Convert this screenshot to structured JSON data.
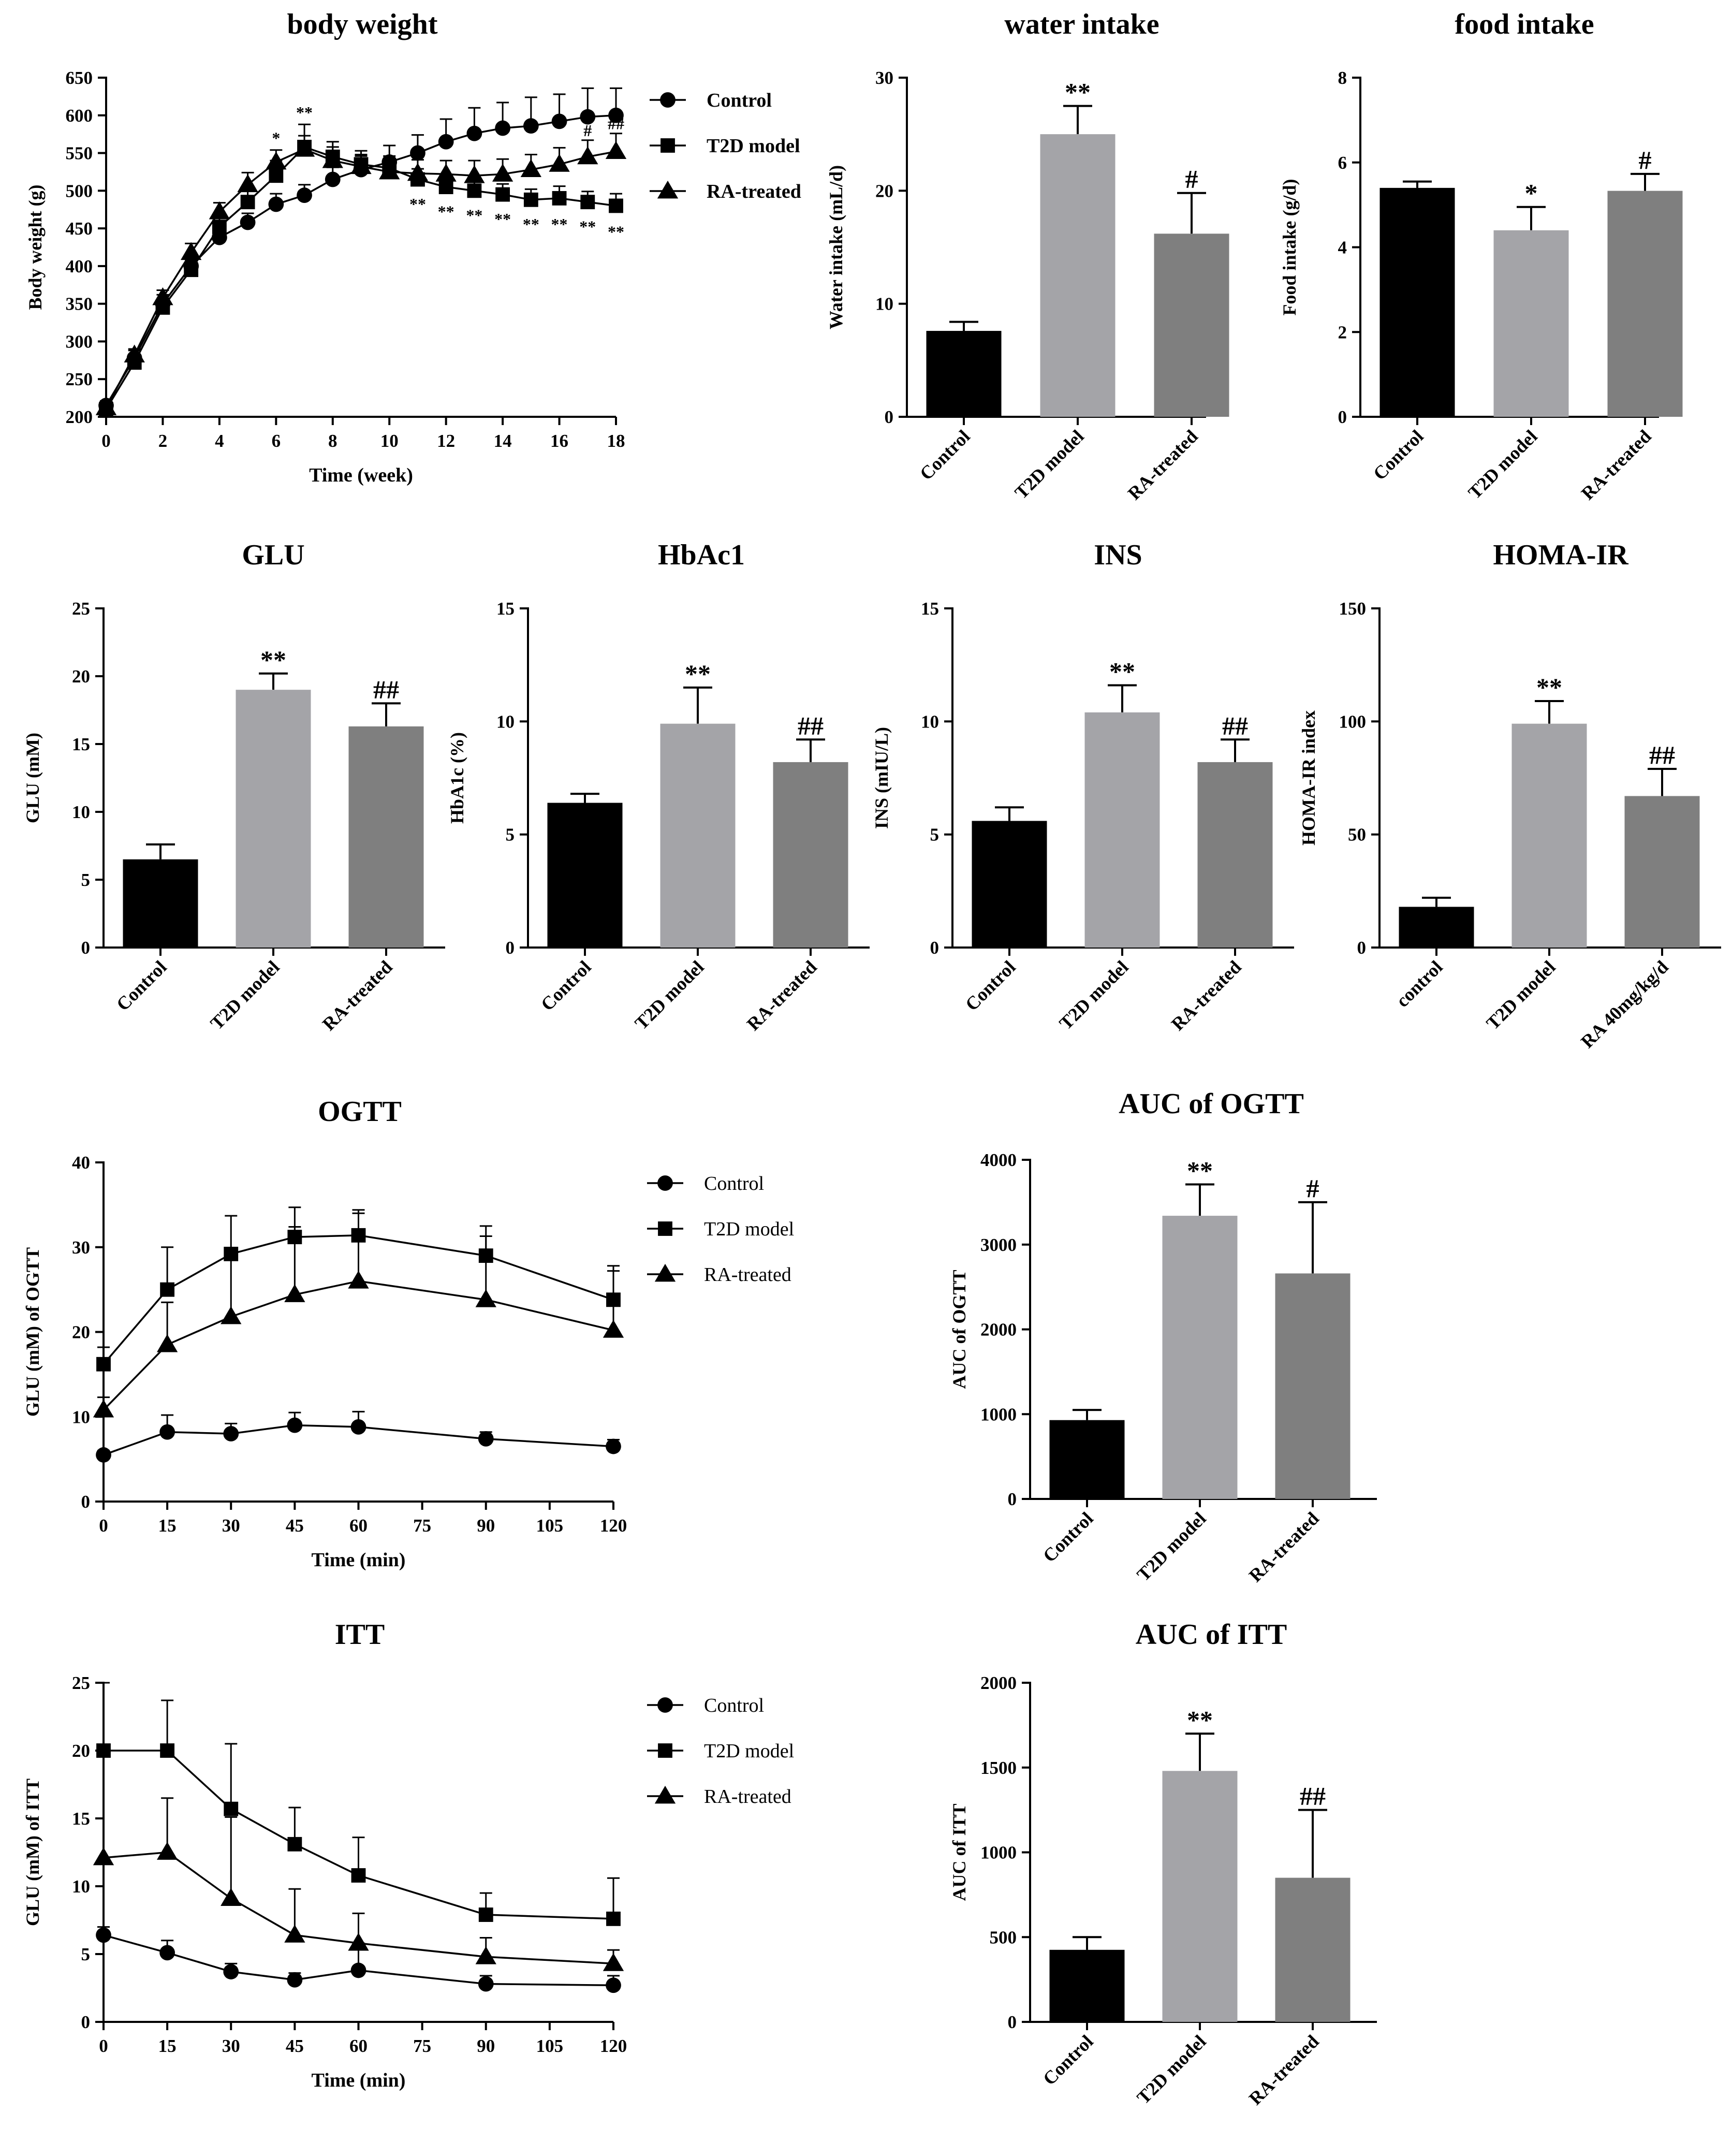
{
  "chart_data": [
    {
      "id": "bw",
      "type": "line",
      "title": "body weight",
      "xlabel": "Time (week)",
      "ylabel": "Body weight (g)",
      "xlim": [
        0,
        18
      ],
      "ylim": [
        200,
        650
      ],
      "xticks": [
        0,
        2,
        4,
        6,
        8,
        10,
        12,
        14,
        16,
        18
      ],
      "yticks": [
        200,
        250,
        300,
        350,
        400,
        450,
        500,
        550,
        600,
        650
      ],
      "legend_style": "bold",
      "series": [
        {
          "name": "Control",
          "marker": "circle",
          "x": [
            0,
            1,
            2,
            3,
            4,
            5,
            6,
            7,
            8,
            9,
            10,
            11,
            12,
            13,
            14,
            15,
            16,
            17,
            18
          ],
          "y": [
            215,
            278,
            350,
            400,
            438,
            458,
            482,
            494,
            515,
            528,
            538,
            550,
            565,
            576,
            583,
            586,
            592,
            598,
            600
          ],
          "err": [
            6,
            10,
            12,
            12,
            10,
            12,
            14,
            14,
            16,
            18,
            22,
            24,
            30,
            34,
            34,
            38,
            36,
            38,
            36
          ]
        },
        {
          "name": "T2D model",
          "marker": "square",
          "x": [
            0,
            1,
            2,
            3,
            4,
            5,
            6,
            7,
            8,
            9,
            10,
            11,
            12,
            13,
            14,
            15,
            16,
            17,
            18
          ],
          "y": [
            210,
            272,
            345,
            395,
            452,
            485,
            520,
            558,
            545,
            535,
            530,
            515,
            505,
            500,
            495,
            488,
            490,
            485,
            480
          ],
          "err": [
            6,
            8,
            10,
            12,
            12,
            16,
            20,
            30,
            20,
            18,
            16,
            14,
            14,
            14,
            14,
            14,
            16,
            14,
            16
          ]
        },
        {
          "name": "RA-treated",
          "marker": "triangle",
          "x": [
            0,
            1,
            2,
            3,
            4,
            5,
            6,
            7,
            8,
            9,
            10,
            11,
            12,
            13,
            14,
            15,
            16,
            17,
            18
          ],
          "y": [
            212,
            282,
            358,
            418,
            472,
            508,
            538,
            555,
            540,
            532,
            525,
            523,
            522,
            520,
            522,
            528,
            535,
            545,
            552
          ],
          "err": [
            6,
            8,
            10,
            12,
            12,
            16,
            16,
            18,
            18,
            16,
            16,
            18,
            18,
            20,
            20,
            20,
            22,
            22,
            24
          ]
        }
      ],
      "annotations": [
        {
          "x": 6,
          "text": "*"
        },
        {
          "x": 7,
          "text": "**"
        },
        {
          "x": 11,
          "text": "**"
        },
        {
          "x": 12,
          "text": "**"
        },
        {
          "x": 13,
          "text": "**"
        },
        {
          "x": 14,
          "text": "**"
        },
        {
          "x": 15,
          "text": "**"
        },
        {
          "x": 16,
          "text": "**"
        },
        {
          "x": 17,
          "text": "**"
        },
        {
          "x": 18,
          "text": "**"
        },
        {
          "x": 17,
          "text": "#"
        },
        {
          "x": 18,
          "text": "##"
        }
      ]
    },
    {
      "id": "water",
      "type": "bar",
      "title": "water intake",
      "ylabel": "Water intake (mL/d)",
      "ylim": [
        0,
        30
      ],
      "yticks": [
        0,
        10,
        20,
        30
      ],
      "categories": [
        "Control",
        "T2D model",
        "RA-treated"
      ],
      "values": [
        7.6,
        25.0,
        16.2
      ],
      "err": [
        0.8,
        2.5,
        3.6
      ],
      "annotations": [
        "",
        "**",
        "#"
      ]
    },
    {
      "id": "food",
      "type": "bar",
      "title": "food intake",
      "ylabel": "Food intake (g/d)",
      "ylim": [
        0,
        8
      ],
      "yticks": [
        0,
        2,
        4,
        6,
        8
      ],
      "categories": [
        "Control",
        "T2D model",
        "RA-treated"
      ],
      "values": [
        5.4,
        4.4,
        5.33
      ],
      "err": [
        0.15,
        0.55,
        0.4
      ],
      "annotations": [
        "",
        "*",
        "#"
      ]
    },
    {
      "id": "glu",
      "type": "bar",
      "title": "GLU",
      "ylabel": "GLU (mM)",
      "ylim": [
        0,
        25
      ],
      "yticks": [
        0,
        5,
        10,
        15,
        20,
        25
      ],
      "categories": [
        "Control",
        "T2D model",
        "RA-treated"
      ],
      "values": [
        6.5,
        19.0,
        16.3
      ],
      "err": [
        1.1,
        1.2,
        1.7
      ],
      "annotations": [
        "",
        "**",
        "##"
      ]
    },
    {
      "id": "hba1c",
      "type": "bar",
      "title": "HbAc1",
      "ylabel": "HbA1c (%)",
      "ylim": [
        0,
        15
      ],
      "yticks": [
        0,
        5,
        10,
        15
      ],
      "categories": [
        "Control",
        "T2D model",
        "RA-treated"
      ],
      "values": [
        6.4,
        9.9,
        8.2
      ],
      "err": [
        0.4,
        1.6,
        1.0
      ],
      "annotations": [
        "",
        "**",
        "##"
      ]
    },
    {
      "id": "ins",
      "type": "bar",
      "title": "INS",
      "ylabel": "INS (mIU/L)",
      "ylim": [
        0,
        15
      ],
      "yticks": [
        0,
        5,
        10,
        15
      ],
      "categories": [
        "Control",
        "T2D model",
        "RA-treated"
      ],
      "values": [
        5.6,
        10.4,
        8.2
      ],
      "err": [
        0.6,
        1.2,
        1.0
      ],
      "annotations": [
        "",
        "**",
        "##"
      ]
    },
    {
      "id": "homa",
      "type": "bar",
      "title": "HOMA-IR",
      "ylabel": "HOMA-IR index",
      "ylim": [
        0,
        150
      ],
      "yticks": [
        0,
        50,
        100,
        150
      ],
      "categories": [
        "control",
        "T2D model",
        "RA 40mg/kg/d"
      ],
      "values": [
        18,
        99,
        67
      ],
      "err": [
        4,
        10,
        12
      ],
      "annotations": [
        "",
        "**",
        "##"
      ]
    },
    {
      "id": "ogtt",
      "type": "line",
      "title": "OGTT",
      "xlabel": "Time (min)",
      "ylabel": "GLU (mM) of OGTT",
      "xlim": [
        0,
        120
      ],
      "ylim": [
        0,
        40
      ],
      "xticks": [
        0,
        15,
        30,
        45,
        60,
        75,
        90,
        105,
        120
      ],
      "yticks": [
        0,
        10,
        20,
        30,
        40
      ],
      "legend_style": "normal",
      "series": [
        {
          "name": "Control",
          "marker": "circle",
          "x": [
            0,
            15,
            30,
            45,
            60,
            90,
            120
          ],
          "y": [
            5.5,
            8.2,
            8.0,
            9.0,
            8.8,
            7.4,
            6.5
          ],
          "err": [
            0.5,
            2.0,
            1.2,
            1.5,
            1.8,
            0.8,
            0.8
          ]
        },
        {
          "name": "T2D model",
          "marker": "square",
          "x": [
            0,
            15,
            30,
            45,
            60,
            90,
            120
          ],
          "y": [
            16.2,
            25.0,
            29.2,
            31.2,
            31.4,
            29.0,
            23.8
          ],
          "err": [
            2.0,
            5.0,
            4.5,
            3.5,
            3.0,
            3.5,
            4.0
          ]
        },
        {
          "name": "RA-treated",
          "marker": "triangle",
          "x": [
            0,
            15,
            30,
            45,
            60,
            90,
            120
          ],
          "y": [
            10.8,
            18.5,
            21.8,
            24.4,
            26.0,
            23.8,
            20.2
          ],
          "err": [
            1.5,
            5.0,
            7.0,
            8.0,
            8.0,
            7.5,
            7.0
          ]
        }
      ]
    },
    {
      "id": "auc_ogtt",
      "type": "bar",
      "title": "AUC of OGTT",
      "ylabel": "AUC of OGTT",
      "ylim": [
        0,
        4000
      ],
      "yticks": [
        0,
        1000,
        2000,
        3000,
        4000
      ],
      "categories": [
        "Control",
        "T2D model",
        "RA-treated"
      ],
      "values": [
        930,
        3340,
        2660
      ],
      "err": [
        120,
        370,
        840
      ],
      "annotations": [
        "",
        "**",
        "#"
      ]
    },
    {
      "id": "itt",
      "type": "line",
      "title": "ITT",
      "xlabel": "Time (min)",
      "ylabel": "GLU (mM) of ITT",
      "xlim": [
        0,
        120
      ],
      "ylim": [
        0,
        25
      ],
      "xticks": [
        0,
        15,
        30,
        45,
        60,
        75,
        90,
        105,
        120
      ],
      "yticks": [
        0,
        5,
        10,
        15,
        20,
        25
      ],
      "legend_style": "normal",
      "series": [
        {
          "name": "Control",
          "marker": "circle",
          "x": [
            0,
            15,
            30,
            45,
            60,
            90,
            120
          ],
          "y": [
            6.4,
            5.1,
            3.7,
            3.1,
            3.8,
            2.8,
            2.7
          ],
          "err": [
            0.6,
            0.9,
            0.6,
            0.5,
            2.0,
            0.6,
            0.7
          ]
        },
        {
          "name": "T2D model",
          "marker": "square",
          "x": [
            0,
            15,
            30,
            45,
            60,
            90,
            120
          ],
          "y": [
            20.0,
            20.0,
            15.7,
            13.1,
            10.8,
            7.9,
            7.6
          ],
          "err": [
            5.0,
            3.7,
            4.8,
            2.7,
            2.8,
            1.6,
            3.0
          ]
        },
        {
          "name": "RA-treated",
          "marker": "triangle",
          "x": [
            0,
            15,
            30,
            45,
            60,
            90,
            120
          ],
          "y": [
            12.1,
            12.5,
            9.1,
            6.4,
            5.8,
            4.8,
            4.3
          ],
          "err": [
            8.0,
            4.0,
            6.0,
            3.4,
            2.2,
            1.4,
            1.0
          ]
        }
      ]
    },
    {
      "id": "auc_itt",
      "type": "bar",
      "title": "AUC of ITT",
      "ylabel": "AUC of ITT",
      "ylim": [
        0,
        2000
      ],
      "yticks": [
        0,
        500,
        1000,
        1500,
        2000
      ],
      "categories": [
        "Control",
        "T2D model",
        "RA-treated"
      ],
      "values": [
        425,
        1480,
        850
      ],
      "err": [
        75,
        220,
        400
      ],
      "annotations": [
        "",
        "**",
        "##"
      ]
    }
  ],
  "colors": {
    "bar_fills": [
      "#000000",
      "#a4a4a8",
      "#7f7f7f"
    ],
    "ink": "#000000",
    "background": "#ffffff"
  }
}
